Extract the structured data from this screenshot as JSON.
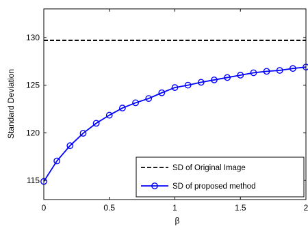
{
  "chart_data": {
    "type": "line",
    "title": "",
    "xlabel": "β",
    "ylabel": "Standard Deviation",
    "xlim": [
      0,
      2
    ],
    "ylim": [
      113,
      133
    ],
    "xticks": [
      0,
      0.5,
      1,
      1.5,
      2
    ],
    "xtick_labels": [
      "0",
      "0.5",
      "1",
      "1.5",
      "2"
    ],
    "yticks": [
      115,
      120,
      125,
      130
    ],
    "ytick_labels": [
      "115",
      "120",
      "125",
      "130"
    ],
    "grid": false,
    "legend_position": "bottom-right",
    "series": [
      {
        "name": "SD of Original Image",
        "color": "#000000",
        "style": "dashed",
        "marker": "none",
        "x": [
          0,
          2
        ],
        "values": [
          129.7,
          129.7
        ]
      },
      {
        "name": "SD of proposed method",
        "color": "#0000ff",
        "style": "solid",
        "marker": "circle",
        "x": [
          0,
          0.1,
          0.2,
          0.3,
          0.4,
          0.5,
          0.6,
          0.7,
          0.8,
          0.9,
          1.0,
          1.1,
          1.2,
          1.3,
          1.4,
          1.5,
          1.6,
          1.7,
          1.8,
          1.9,
          2.0
        ],
        "values": [
          114.9,
          117.05,
          118.65,
          119.95,
          121.0,
          121.85,
          122.6,
          123.15,
          123.6,
          124.2,
          124.75,
          125.0,
          125.3,
          125.55,
          125.8,
          126.05,
          126.3,
          126.45,
          126.55,
          126.75,
          126.9
        ]
      }
    ]
  }
}
